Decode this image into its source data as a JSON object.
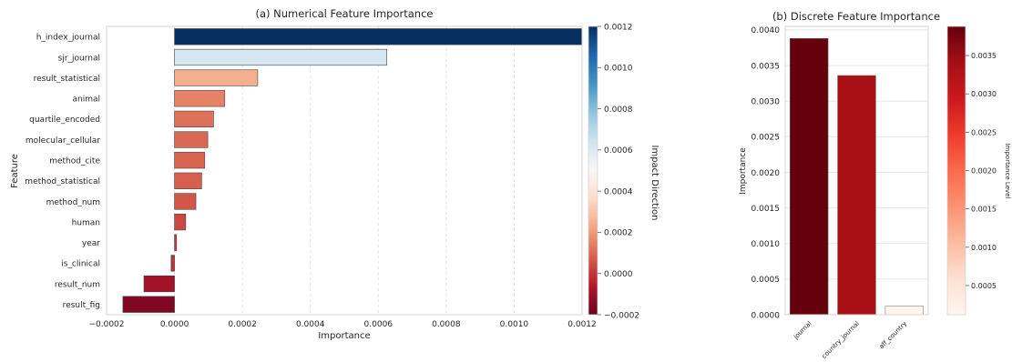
{
  "chart_data": [
    {
      "type": "bar",
      "orientation": "horizontal",
      "title": "(a) Numerical Feature Importance",
      "xlabel": "Importance",
      "ylabel": "Feature",
      "xlim": [
        -0.0002,
        0.0012
      ],
      "xticks": [
        "−0.0002",
        "0.0000",
        "0.0002",
        "0.0004",
        "0.0006",
        "0.0008",
        "0.0010",
        "0.0012"
      ],
      "grid": "vertical dashed",
      "categories": [
        "h_index_journal",
        "sjr_journal",
        "result_statistical",
        "animal",
        "quartile_encoded",
        "molecular_cellular",
        "method_cite",
        "method_statistical",
        "method_num",
        "human",
        "year",
        "is_clinical",
        "result_num",
        "result_fig"
      ],
      "values": [
        0.0012,
        0.000625,
        0.000245,
        0.000148,
        0.000115,
        9.8e-05,
        8.9e-05,
        8e-05,
        6.3e-05,
        3.3e-05,
        6e-06,
        -1e-05,
        -9e-05,
        -0.000152
      ],
      "colorbar": {
        "label": "Impact Direction",
        "colormap": "RdBu",
        "range": [
          -0.0002,
          0.0012
        ],
        "ticks": [
          "−0.0002",
          "0.0000",
          "0.0002",
          "0.0004",
          "0.0006",
          "0.0008",
          "0.0010",
          "0.0012"
        ]
      }
    },
    {
      "type": "bar",
      "orientation": "vertical",
      "title": "(b) Discrete Feature Importance",
      "xlabel": "",
      "ylabel": "Importance",
      "ylim": [
        0,
        0.00405
      ],
      "yticks": [
        "0.0000",
        "0.0005",
        "0.0010",
        "0.0015",
        "0.0020",
        "0.0025",
        "0.0030",
        "0.0035",
        "0.0040"
      ],
      "grid": "horizontal",
      "categories": [
        "journal",
        "country_journal",
        "aff_country"
      ],
      "values": [
        0.00388,
        0.00336,
        0.00012
      ],
      "colorbar": {
        "label": "Importance Level",
        "colormap": "Reds",
        "range": [
          0.00012,
          0.00388
        ],
        "ticks": [
          "0.0005",
          "0.0010",
          "0.0015",
          "0.0020",
          "0.0025",
          "0.0030",
          "0.0035"
        ]
      }
    }
  ]
}
